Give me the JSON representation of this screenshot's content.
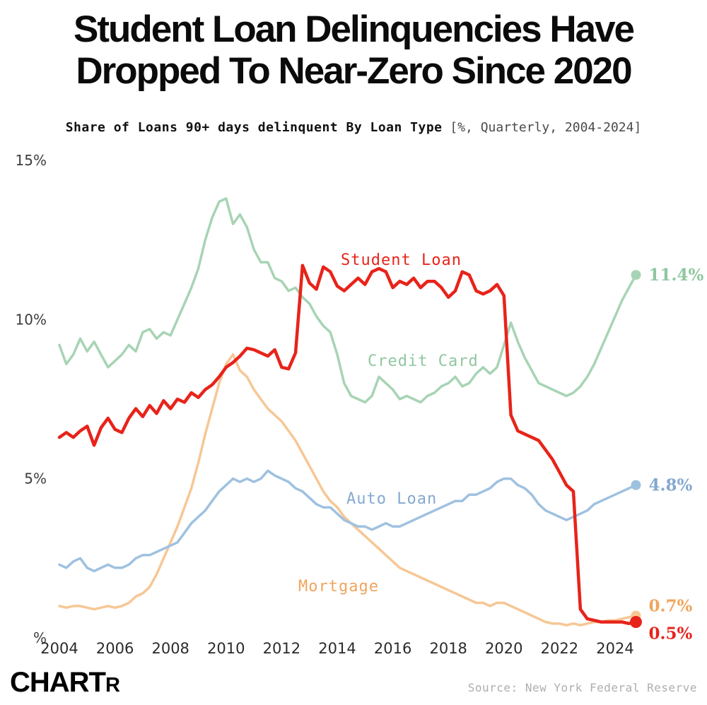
{
  "title": {
    "line1": "Student Loan Delinquencies Have",
    "line2": "Dropped To Near-Zero Since 2020"
  },
  "subtitle": {
    "main": "Share of Loans 90+ days delinquent By Loan Type",
    "detail": "[%, Quarterly, 2004-2024]"
  },
  "footer": {
    "logo_main": "CHART",
    "logo_sub": "R",
    "source": "Source: New York Federal Reserve"
  },
  "chart_data": {
    "type": "line",
    "title": "Share of Loans 90+ days delinquent By Loan Type",
    "x_start": 2004,
    "x_step": 0.25,
    "x_ticks": [
      2004,
      2006,
      2008,
      2010,
      2012,
      2014,
      2016,
      2018,
      2020,
      2022,
      2024
    ],
    "y_ticks": [
      {
        "value": 15,
        "label": "15%"
      },
      {
        "value": 10,
        "label": "10%"
      },
      {
        "value": 5,
        "label": "5%"
      },
      {
        "value": 0,
        "label": "%"
      }
    ],
    "ylim": [
      0,
      15
    ],
    "grid": false,
    "legend_position": "inline-labels",
    "series": [
      {
        "name": "Credit Card",
        "color": "#a7d4b4",
        "label_color": "#8fc7a0",
        "end_label": "11.4%",
        "end_value": 11.4,
        "stroke_width": 3.5,
        "dot_radius": 7,
        "label_dy": 0,
        "values": [
          9.2,
          8.6,
          8.9,
          9.4,
          9.0,
          9.3,
          8.9,
          8.5,
          8.7,
          8.9,
          9.2,
          9.0,
          9.6,
          9.7,
          9.4,
          9.6,
          9.5,
          10.0,
          10.5,
          11.0,
          11.6,
          12.5,
          13.2,
          13.7,
          13.8,
          13.0,
          13.3,
          12.9,
          12.2,
          11.8,
          11.8,
          11.3,
          11.2,
          10.9,
          11.0,
          10.7,
          10.5,
          10.1,
          9.8,
          9.6,
          8.9,
          8.0,
          7.6,
          7.5,
          7.4,
          7.6,
          8.2,
          8.0,
          7.8,
          7.5,
          7.6,
          7.5,
          7.4,
          7.6,
          7.7,
          7.9,
          8.0,
          8.2,
          7.9,
          8.0,
          8.3,
          8.5,
          8.3,
          8.5,
          9.2,
          9.9,
          9.3,
          8.8,
          8.4,
          8.0,
          7.9,
          7.8,
          7.7,
          7.6,
          7.7,
          7.9,
          8.2,
          8.6,
          9.1,
          9.6,
          10.1,
          10.6,
          11.0,
          11.4
        ]
      },
      {
        "name": "Mortgage",
        "color": "#f6c795",
        "label_color": "#f0a55d",
        "end_label": "0.7%",
        "end_value": 0.7,
        "stroke_width": 3.5,
        "dot_radius": 7,
        "label_dy": -14,
        "values": [
          1.0,
          0.95,
          1.0,
          1.0,
          0.95,
          0.9,
          0.95,
          1.0,
          0.95,
          1.0,
          1.1,
          1.3,
          1.4,
          1.6,
          2.0,
          2.5,
          3.0,
          3.5,
          4.1,
          4.7,
          5.5,
          6.4,
          7.2,
          8.0,
          8.6,
          8.9,
          8.4,
          8.2,
          7.8,
          7.5,
          7.2,
          7.0,
          6.8,
          6.5,
          6.2,
          5.8,
          5.4,
          5.0,
          4.6,
          4.3,
          4.1,
          3.8,
          3.6,
          3.4,
          3.2,
          3.0,
          2.8,
          2.6,
          2.4,
          2.2,
          2.1,
          2.0,
          1.9,
          1.8,
          1.7,
          1.6,
          1.5,
          1.4,
          1.3,
          1.2,
          1.1,
          1.1,
          1.0,
          1.1,
          1.1,
          1.0,
          0.9,
          0.8,
          0.7,
          0.6,
          0.5,
          0.45,
          0.45,
          0.4,
          0.45,
          0.4,
          0.45,
          0.5,
          0.5,
          0.55,
          0.55,
          0.6,
          0.65,
          0.7
        ]
      },
      {
        "name": "Auto Loan",
        "color": "#9fc1e0",
        "label_color": "#84a9cf",
        "end_label": "4.8%",
        "end_value": 4.8,
        "stroke_width": 3.5,
        "dot_radius": 7,
        "label_dy": 0,
        "values": [
          2.3,
          2.2,
          2.4,
          2.5,
          2.2,
          2.1,
          2.2,
          2.3,
          2.2,
          2.2,
          2.3,
          2.5,
          2.6,
          2.6,
          2.7,
          2.8,
          2.9,
          3.0,
          3.3,
          3.6,
          3.8,
          4.0,
          4.3,
          4.6,
          4.8,
          5.0,
          4.9,
          5.0,
          4.9,
          5.0,
          5.25,
          5.1,
          5.0,
          4.9,
          4.7,
          4.6,
          4.4,
          4.2,
          4.1,
          4.1,
          3.9,
          3.7,
          3.6,
          3.5,
          3.5,
          3.4,
          3.5,
          3.6,
          3.5,
          3.5,
          3.6,
          3.7,
          3.8,
          3.9,
          4.0,
          4.1,
          4.2,
          4.3,
          4.3,
          4.5,
          4.5,
          4.6,
          4.7,
          4.9,
          5.0,
          5.0,
          4.8,
          4.7,
          4.5,
          4.2,
          4.0,
          3.9,
          3.8,
          3.7,
          3.8,
          3.9,
          4.0,
          4.2,
          4.3,
          4.4,
          4.5,
          4.6,
          4.7,
          4.8
        ]
      },
      {
        "name": "Student Loan",
        "color": "#e8231a",
        "label_color": "#e8231a",
        "end_label": "0.5%",
        "end_value": 0.5,
        "stroke_width": 4.5,
        "dot_radius": 8.5,
        "label_dy": 16,
        "values": [
          6.3,
          6.45,
          6.3,
          6.5,
          6.65,
          6.05,
          6.6,
          6.9,
          6.55,
          6.45,
          6.9,
          7.2,
          6.95,
          7.3,
          7.05,
          7.45,
          7.2,
          7.5,
          7.4,
          7.7,
          7.55,
          7.8,
          7.95,
          8.2,
          8.5,
          8.65,
          8.85,
          9.1,
          9.05,
          8.95,
          8.85,
          9.05,
          8.5,
          8.45,
          8.95,
          11.7,
          11.15,
          10.95,
          11.65,
          11.5,
          11.05,
          10.9,
          11.1,
          11.3,
          11.1,
          11.5,
          11.6,
          11.5,
          11.0,
          11.2,
          11.1,
          11.3,
          11.0,
          11.2,
          11.2,
          11.0,
          10.7,
          10.9,
          11.5,
          11.4,
          10.9,
          10.8,
          10.9,
          11.1,
          10.75,
          7.0,
          6.5,
          6.4,
          6.3,
          6.2,
          5.9,
          5.6,
          5.2,
          4.8,
          4.6,
          0.9,
          0.6,
          0.55,
          0.5,
          0.5,
          0.5,
          0.5,
          0.45,
          0.5
        ]
      }
    ]
  }
}
